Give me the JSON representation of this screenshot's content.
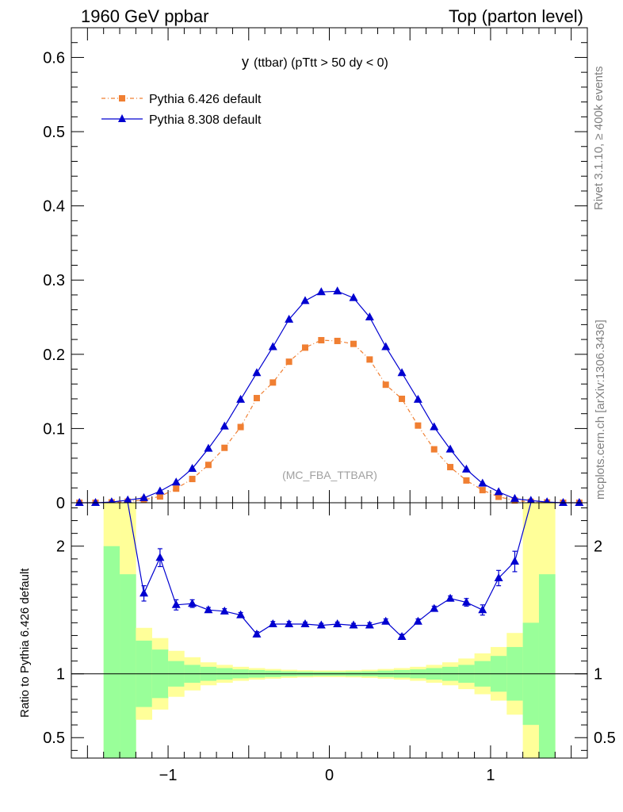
{
  "header": {
    "left": "1960 GeV ppbar",
    "right": "Top (parton level)"
  },
  "side": {
    "rivet": "Rivet 3.1.10, ≥ 400k events",
    "mcplots": "mcplots.cern.ch [arXiv:1306.3436]"
  },
  "plot_title": {
    "main": "y",
    "sub": "(ttbar) (pTtt > 50 dy < 0)"
  },
  "watermark": "(MC_FBA_TTBAR)",
  "ratio_ylabel": "Ratio to Pythia 6.426 default",
  "colors": {
    "pythia6": "#f07f32",
    "pythia8": "#0000d0",
    "band_inner": "#99ff99",
    "band_outer": "#ffff99"
  },
  "chart_data": [
    {
      "type": "line",
      "panel": "main",
      "xlim": [
        -1.6,
        1.6
      ],
      "ylim": [
        0,
        0.64
      ],
      "yticks": [
        {
          "v": 0,
          "label": "0"
        },
        {
          "v": 0.1,
          "label": "0.1"
        },
        {
          "v": 0.2,
          "label": "0.2"
        },
        {
          "v": 0.3,
          "label": "0.3"
        },
        {
          "v": 0.4,
          "label": "0.4"
        },
        {
          "v": 0.5,
          "label": "0.5"
        },
        {
          "v": 0.6,
          "label": "0.6"
        }
      ],
      "x": [
        -1.55,
        -1.45,
        -1.35,
        -1.25,
        -1.15,
        -1.05,
        -0.95,
        -0.85,
        -0.75,
        -0.65,
        -0.55,
        -0.45,
        -0.35,
        -0.25,
        -0.15,
        -0.05,
        0.05,
        0.15,
        0.25,
        0.35,
        0.45,
        0.55,
        0.65,
        0.75,
        0.85,
        0.95,
        1.05,
        1.15,
        1.25,
        1.35,
        1.45,
        1.55
      ],
      "series": [
        {
          "name": "Pythia 6.426 default",
          "marker": "square",
          "dash": true,
          "values": [
            0.0,
            0.0,
            0.0005,
            0.0015,
            0.004,
            0.0085,
            0.019,
            0.032,
            0.051,
            0.074,
            0.102,
            0.141,
            0.162,
            0.19,
            0.209,
            0.219,
            0.218,
            0.214,
            0.193,
            0.159,
            0.14,
            0.104,
            0.072,
            0.048,
            0.03,
            0.017,
            0.008,
            0.003,
            0.0012,
            0.0004,
            0.0,
            0.0
          ]
        },
        {
          "name": "Pythia 8.308 default",
          "marker": "triangle",
          "dash": false,
          "values": [
            0.0,
            0.0,
            0.001,
            0.0035,
            0.0065,
            0.0155,
            0.0275,
            0.046,
            0.073,
            0.103,
            0.139,
            0.175,
            0.21,
            0.247,
            0.272,
            0.284,
            0.285,
            0.276,
            0.25,
            0.21,
            0.175,
            0.139,
            0.102,
            0.072,
            0.045,
            0.026,
            0.0145,
            0.0055,
            0.003,
            0.001,
            0.0,
            0.0
          ]
        }
      ]
    },
    {
      "type": "line",
      "panel": "ratio",
      "xlabel": "",
      "ylabel": "Ratio to Pythia 6.426 default",
      "xlim": [
        -1.6,
        1.6
      ],
      "ylim": [
        0.34,
        2.34
      ],
      "yticks": [
        {
          "v": 0.5,
          "label": "0.5"
        },
        {
          "v": 1,
          "label": "1"
        },
        {
          "v": 2,
          "label": "2"
        }
      ],
      "xticks": [
        {
          "v": -1,
          "label": "−1"
        },
        {
          "v": 0,
          "label": "0"
        },
        {
          "v": 1,
          "label": "1"
        }
      ],
      "band_edges": [
        -1.4,
        -1.3,
        -1.2,
        -1.1,
        -1.0,
        -0.9,
        -0.8,
        -0.7,
        -0.6,
        -0.5,
        -0.4,
        -0.3,
        -0.2,
        -0.1,
        0.0,
        0.1,
        0.2,
        0.3,
        0.4,
        0.5,
        0.6,
        0.7,
        0.8,
        0.9,
        1.0,
        1.1,
        1.2,
        1.3,
        1.4
      ],
      "band_inner_half": [
        1.0,
        0.78,
        0.26,
        0.19,
        0.1,
        0.07,
        0.055,
        0.045,
        0.035,
        0.03,
        0.025,
        0.02,
        0.018,
        0.016,
        0.016,
        0.018,
        0.02,
        0.025,
        0.03,
        0.035,
        0.045,
        0.055,
        0.07,
        0.1,
        0.14,
        0.21,
        0.4,
        0.78
      ],
      "band_outer_half": [
        1.5,
        1.5,
        0.36,
        0.28,
        0.18,
        0.13,
        0.09,
        0.07,
        0.055,
        0.045,
        0.038,
        0.032,
        0.028,
        0.026,
        0.026,
        0.028,
        0.032,
        0.038,
        0.045,
        0.055,
        0.07,
        0.09,
        0.12,
        0.16,
        0.21,
        0.32,
        1.5,
        1.5
      ],
      "series": [
        {
          "name": "Pythia 8.308 / Pythia 6.426",
          "x": [
            -1.15,
            -1.05,
            -0.95,
            -0.85,
            -0.75,
            -0.65,
            -0.55,
            -0.45,
            -0.35,
            -0.25,
            -0.15,
            -0.05,
            0.05,
            0.15,
            0.25,
            0.35,
            0.45,
            0.55,
            0.65,
            0.75,
            0.85,
            0.95,
            1.05,
            1.15
          ],
          "values": [
            1.63,
            1.91,
            1.54,
            1.55,
            1.5,
            1.49,
            1.46,
            1.31,
            1.39,
            1.39,
            1.39,
            1.38,
            1.39,
            1.38,
            1.38,
            1.41,
            1.29,
            1.41,
            1.51,
            1.59,
            1.56,
            1.5,
            1.75,
            1.88
          ],
          "errors": [
            0.06,
            0.07,
            0.04,
            0.03,
            0.02,
            0.02,
            0.02,
            0.02,
            0.02,
            0.02,
            0.015,
            0.015,
            0.015,
            0.015,
            0.02,
            0.02,
            0.02,
            0.02,
            0.02,
            0.02,
            0.03,
            0.04,
            0.06,
            0.08
          ]
        }
      ],
      "offscale_left": {
        "x": -1.25,
        "direction": "up"
      },
      "offscale_right": {
        "x": 1.25,
        "direction": "up"
      }
    }
  ]
}
